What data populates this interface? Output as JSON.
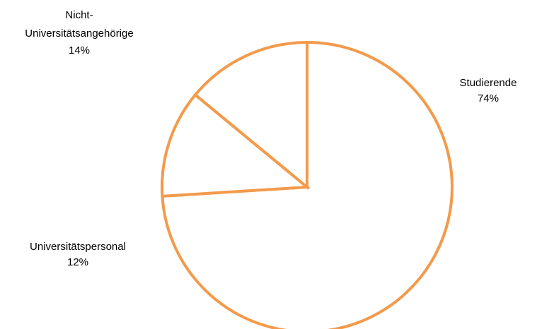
{
  "colors": {
    "outline": "#f39a4b",
    "fill": "#ffffff",
    "label_text": "#000000"
  },
  "chart_data": {
    "type": "pie",
    "legend": "none",
    "slices": [
      {
        "label": "Studierende",
        "percent_label": "74%",
        "value": 74
      },
      {
        "label": "Universitätspersonal",
        "percent_label": "12%",
        "value": 12
      },
      {
        "label": "Nicht-Universitätsangehörige",
        "percent_label": "14%",
        "value": 14
      }
    ]
  }
}
